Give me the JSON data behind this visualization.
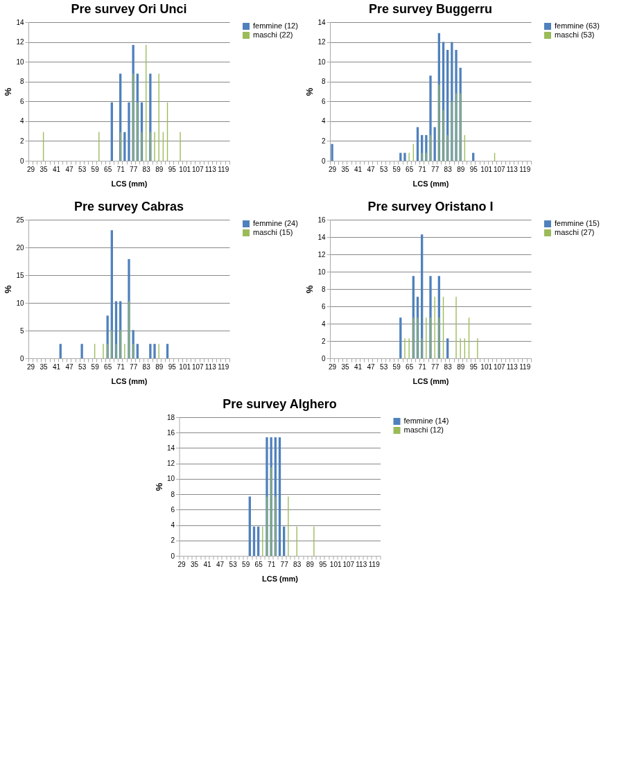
{
  "chart_data": [
    {
      "type": "bar",
      "title": "Pre survey  Ori Unci",
      "xlabel": "LCS (mm)",
      "ylabel": "%",
      "categories": [
        "29",
        null,
        null,
        "35",
        null,
        null,
        "41",
        null,
        null,
        "47",
        null,
        null,
        "53",
        null,
        null,
        "59",
        null,
        null,
        "65",
        null,
        null,
        "71",
        null,
        null,
        "77",
        null,
        null,
        "83",
        null,
        null,
        "89",
        null,
        null,
        "95",
        null,
        null,
        "101",
        null,
        null,
        "107",
        null,
        null,
        "113",
        null,
        null,
        "119",
        null
      ],
      "series": [
        {
          "name": "femmine (12)",
          "color": "#4f81bd",
          "values": [
            0,
            0,
            0,
            0,
            0,
            0,
            0,
            0,
            0,
            0,
            0,
            0,
            0,
            0,
            0,
            0,
            0,
            0,
            0,
            5.9,
            0,
            8.8,
            2.9,
            5.9,
            11.7,
            8.8,
            5.9,
            0,
            8.8,
            0,
            0,
            0,
            0,
            0,
            0,
            0,
            0,
            0,
            0,
            0,
            0,
            0,
            0,
            0,
            0,
            0,
            0
          ]
        },
        {
          "name": "maschi (22)",
          "color": "#9bbb59",
          "values": [
            0,
            0,
            0,
            2.9,
            0,
            0,
            0,
            0,
            0,
            0,
            0,
            0,
            0,
            0,
            0,
            0,
            2.9,
            0,
            0,
            0,
            0,
            2.9,
            0,
            0,
            8.8,
            5.9,
            2.9,
            11.7,
            2.9,
            2.9,
            8.8,
            2.9,
            5.9,
            0,
            0,
            2.9,
            0,
            0,
            0,
            0,
            0,
            0,
            0,
            0,
            0,
            0,
            0
          ]
        }
      ],
      "ylim": [
        0,
        14
      ],
      "yticks": [
        0,
        2,
        4,
        6,
        8,
        10,
        12,
        14
      ],
      "grid": "y",
      "legend": "right"
    },
    {
      "type": "bar",
      "title": "Pre survey  Buggerru",
      "xlabel": "LCS (mm)",
      "ylabel": "%",
      "categories": [
        "29",
        null,
        null,
        "35",
        null,
        null,
        "41",
        null,
        null,
        "47",
        null,
        null,
        "53",
        null,
        null,
        "59",
        null,
        null,
        "65",
        null,
        null,
        "71",
        null,
        null,
        "77",
        null,
        null,
        "83",
        null,
        null,
        "89",
        null,
        null,
        "95",
        null,
        null,
        "101",
        null,
        null,
        "107",
        null,
        null,
        "113",
        null,
        null,
        "119",
        null
      ],
      "series": [
        {
          "name": "femmine (63)",
          "color": "#4f81bd",
          "values": [
            1.7,
            0,
            0,
            0,
            0,
            0,
            0,
            0,
            0,
            0,
            0,
            0,
            0,
            0,
            0,
            0,
            0.8,
            0.8,
            0,
            0,
            3.4,
            2.6,
            2.6,
            8.6,
            3.4,
            12.9,
            12.0,
            11.2,
            12.0,
            11.2,
            9.4,
            0,
            0,
            0.8,
            0,
            0,
            0,
            0,
            0,
            0,
            0,
            0,
            0,
            0,
            0,
            0,
            0
          ]
        },
        {
          "name": "maschi (53)",
          "color": "#9bbb59",
          "values": [
            0,
            0,
            0,
            0,
            0,
            0,
            0,
            0,
            0,
            0,
            0,
            0,
            0,
            0,
            0,
            0,
            0,
            0,
            0.8,
            1.7,
            0,
            0.8,
            0.8,
            2.6,
            0,
            7.7,
            5.1,
            2.6,
            6.0,
            6.8,
            6.8,
            2.6,
            0,
            0,
            0,
            0,
            0,
            0,
            0.8,
            0,
            0,
            0,
            0,
            0,
            0,
            0,
            0
          ]
        }
      ],
      "ylim": [
        0,
        14
      ],
      "yticks": [
        0,
        2,
        4,
        6,
        8,
        10,
        12,
        14
      ],
      "grid": "y",
      "legend": "right"
    },
    {
      "type": "bar",
      "title": "Pre survey  Cabras",
      "xlabel": "LCS (mm)",
      "ylabel": "%",
      "categories": [
        "29",
        null,
        null,
        "35",
        null,
        null,
        "41",
        null,
        null,
        "47",
        null,
        null,
        "53",
        null,
        null,
        "59",
        null,
        null,
        "65",
        null,
        null,
        "71",
        null,
        null,
        "77",
        null,
        null,
        "83",
        null,
        null,
        "89",
        null,
        null,
        "95",
        null,
        null,
        "101",
        null,
        null,
        "107",
        null,
        null,
        "113",
        null,
        null,
        "119",
        null
      ],
      "series": [
        {
          "name": "femmine (24)",
          "color": "#4f81bd",
          "values": [
            0,
            0,
            0,
            0,
            0,
            0,
            0,
            2.6,
            0,
            0,
            0,
            0,
            2.6,
            0,
            0,
            0,
            0,
            0,
            7.7,
            23.1,
            10.3,
            10.3,
            0,
            17.9,
            5.1,
            2.6,
            0,
            0,
            2.6,
            2.6,
            0,
            0,
            2.6,
            0,
            0,
            0,
            0,
            0,
            0,
            0,
            0,
            0,
            0,
            0,
            0,
            0,
            0
          ]
        },
        {
          "name": "maschi (15)",
          "color": "#9bbb59",
          "values": [
            0,
            0,
            0,
            0,
            0,
            0,
            0,
            0,
            0,
            0,
            0,
            0,
            0,
            0,
            0,
            2.6,
            0,
            2.6,
            2.6,
            5.1,
            2.6,
            5.1,
            2.6,
            10.3,
            2.6,
            0,
            0,
            0,
            0,
            0,
            2.6,
            0,
            0,
            0,
            0,
            0,
            0,
            0,
            0,
            0,
            0,
            0,
            0,
            0,
            0,
            0,
            0
          ]
        }
      ],
      "ylim": [
        0,
        25
      ],
      "yticks": [
        0,
        5,
        10,
        15,
        20,
        25
      ],
      "grid": "y",
      "legend": "right"
    },
    {
      "type": "bar",
      "title": "Pre survey  Oristano I",
      "xlabel": "LCS (mm)",
      "ylabel": "%",
      "categories": [
        "29",
        null,
        null,
        "35",
        null,
        null,
        "41",
        null,
        null,
        "47",
        null,
        null,
        "53",
        null,
        null,
        "59",
        null,
        null,
        "65",
        null,
        null,
        "71",
        null,
        null,
        "77",
        null,
        null,
        "83",
        null,
        null,
        "89",
        null,
        null,
        "95",
        null,
        null,
        "101",
        null,
        null,
        "107",
        null,
        null,
        "113",
        null,
        null,
        "119",
        null
      ],
      "series": [
        {
          "name": "femmine (15)",
          "color": "#4f81bd",
          "values": [
            0,
            0,
            0,
            0,
            0,
            0,
            0,
            0,
            0,
            0,
            0,
            0,
            0,
            0,
            0,
            0,
            4.7,
            0,
            0,
            9.5,
            7.1,
            14.3,
            0,
            9.5,
            0,
            9.5,
            0,
            2.3,
            0,
            0,
            0,
            0,
            0,
            0,
            0,
            0,
            0,
            0,
            0,
            0,
            0,
            0,
            0,
            0,
            0,
            0,
            0
          ]
        },
        {
          "name": "maschi (27)",
          "color": "#9bbb59",
          "values": [
            0,
            0,
            0,
            0,
            0,
            0,
            0,
            0,
            0,
            0,
            0,
            0,
            0,
            0,
            0,
            0,
            0,
            2.3,
            2.3,
            4.7,
            4.7,
            2.3,
            4.7,
            4.7,
            7.1,
            4.7,
            7.1,
            0,
            0,
            7.1,
            2.3,
            2.3,
            4.7,
            0,
            2.3,
            0,
            0,
            0,
            0,
            0,
            0,
            0,
            0,
            0,
            0,
            0,
            0
          ]
        }
      ],
      "ylim": [
        0,
        16
      ],
      "yticks": [
        0,
        2,
        4,
        6,
        8,
        10,
        12,
        14,
        16
      ],
      "grid": "y",
      "legend": "right"
    },
    {
      "type": "bar",
      "title": "Pre survey  Alghero",
      "xlabel": "LCS (mm)",
      "ylabel": "%",
      "categories": [
        "29",
        null,
        null,
        "35",
        null,
        null,
        "41",
        null,
        null,
        "47",
        null,
        null,
        "53",
        null,
        null,
        "59",
        null,
        null,
        "65",
        null,
        null,
        "71",
        null,
        null,
        "77",
        null,
        null,
        "83",
        null,
        null,
        "89",
        null,
        null,
        "95",
        null,
        null,
        "101",
        null,
        null,
        "107",
        null,
        null,
        "113",
        null,
        null,
        "119",
        null
      ],
      "series": [
        {
          "name": "femmine (14)",
          "color": "#4f81bd",
          "values": [
            0,
            0,
            0,
            0,
            0,
            0,
            0,
            0,
            0,
            0,
            0,
            0,
            0,
            0,
            0,
            0,
            7.7,
            3.8,
            3.8,
            0,
            15.4,
            15.4,
            15.4,
            15.4,
            3.8,
            0,
            0,
            0,
            0,
            0,
            0,
            0,
            0,
            0,
            0,
            0,
            0,
            0,
            0,
            0,
            0,
            0,
            0,
            0,
            0,
            0,
            0
          ]
        },
        {
          "name": "maschi (12)",
          "color": "#9bbb59",
          "values": [
            0,
            0,
            0,
            0,
            0,
            0,
            0,
            0,
            0,
            0,
            0,
            0,
            0,
            0,
            0,
            0,
            0,
            0,
            0,
            3.8,
            7.7,
            11.5,
            7.7,
            0,
            0,
            7.7,
            0,
            3.8,
            0,
            0,
            0,
            3.8,
            0,
            0,
            0,
            0,
            0,
            0,
            0,
            0,
            0,
            0,
            0,
            0,
            0,
            0,
            0
          ]
        }
      ],
      "ylim": [
        0,
        18
      ],
      "yticks": [
        0,
        2,
        4,
        6,
        8,
        10,
        12,
        14,
        16,
        18
      ],
      "grid": "y",
      "legend": "right"
    }
  ]
}
